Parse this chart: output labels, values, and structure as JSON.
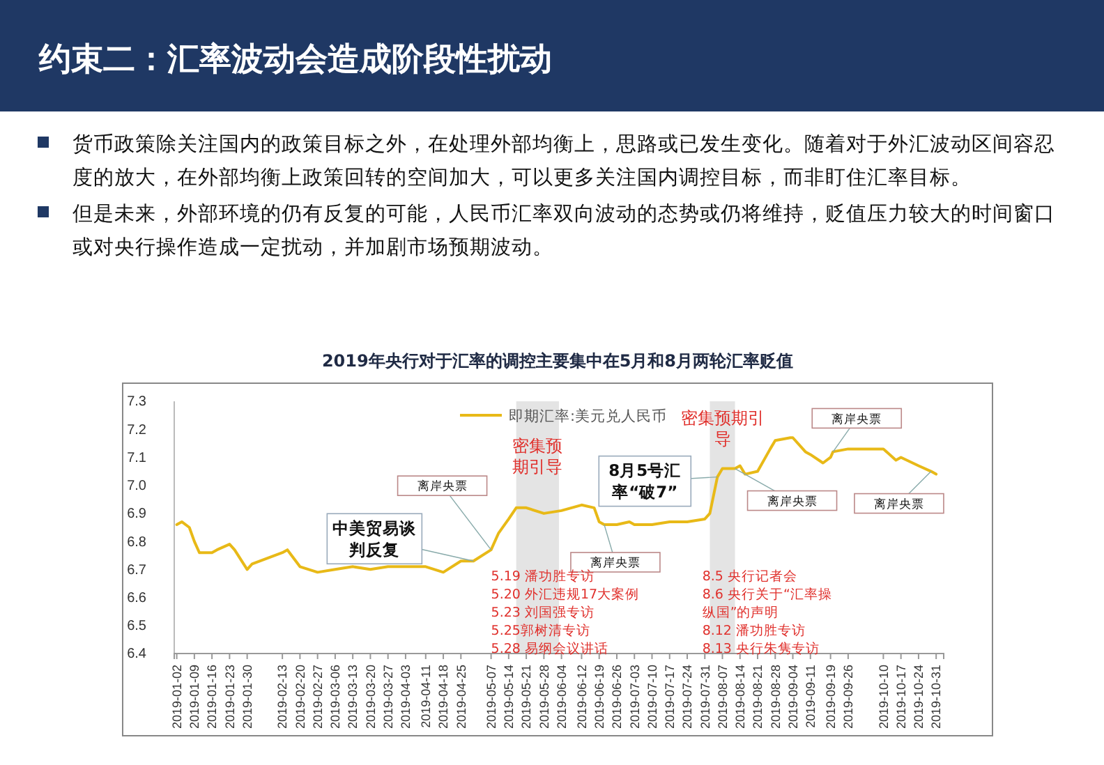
{
  "chart_data": {
    "type": "line",
    "title": "约束二：汇率波动会造成阶段性扰动",
    "subtitle": "2019年央行对于汇率的调控主要集中在5月和8月两轮汇率贬值",
    "annotations": [
      "货币政策除关注国内的政策目标之外，在处理外部均衡上，思路或已发生变化。随着对于外汇波动区间容忍度的放大，在外部均衡上政策回转的空间加大，可以更多关注国内调控目标，而非盯住汇率目标。",
      "但是未来，外部环境的仍有反复的可能，人民币汇率双向波动的态势或仍将维持，贬值压力较大的时间窗口或对央行操作造成一定扰动，并加剧市场预期波动。",
      {
        "text": "离岸央票",
        "x": "2019-05-07",
        "y": 6.77
      },
      {
        "text": "中美贸易谈判反复",
        "x": "2019-04-30",
        "y": 6.73
      },
      {
        "text": "离岸央票",
        "x": "2019-06-21",
        "y": 6.86
      },
      {
        "text": "8月5号汇率“破7”",
        "x": "2019-08-05",
        "y": 7.03
      },
      {
        "text": "离岸央票",
        "x": "2019-08-12",
        "y": 7.06
      },
      {
        "text": "离岸央票",
        "x": "2019-09-20",
        "y": 7.12
      },
      {
        "text": "离岸央票",
        "x": "2019-10-29",
        "y": 7.05
      },
      "5.19 潘功胜专访\n5.20 外汇违规17大案例\n5.23 刘国强专访\n5.25郭树清专访\n5.28 易纲会议讲话",
      "8.5 央行记者会\n8.6 央行关于“汇率操纵国”的声明\n8.12 潘功胜专访\n8.13 央行朱隽专访"
    ],
    "x": [
      "2019-01-02",
      "2019-01-04",
      "2019-01-07",
      "2019-01-09",
      "2019-01-11",
      "2019-01-16",
      "2019-01-18",
      "2019-01-23",
      "2019-01-25",
      "2019-01-30",
      "2019-02-01",
      "2019-02-13",
      "2019-02-15",
      "2019-02-20",
      "2019-02-27",
      "2019-03-06",
      "2019-03-13",
      "2019-03-20",
      "2019-03-27",
      "2019-04-03",
      "2019-04-11",
      "2019-04-18",
      "2019-04-25",
      "2019-04-30",
      "2019-05-07",
      "2019-05-10",
      "2019-05-14",
      "2019-05-17",
      "2019-05-21",
      "2019-05-28",
      "2019-06-04",
      "2019-06-12",
      "2019-06-17",
      "2019-06-19",
      "2019-06-21",
      "2019-06-26",
      "2019-07-01",
      "2019-07-03",
      "2019-07-10",
      "2019-07-17",
      "2019-07-24",
      "2019-07-31",
      "2019-08-02",
      "2019-08-05",
      "2019-08-07",
      "2019-08-12",
      "2019-08-14",
      "2019-08-16",
      "2019-08-21",
      "2019-08-26",
      "2019-08-28",
      "2019-09-03",
      "2019-09-04",
      "2019-09-09",
      "2019-09-11",
      "2019-09-16",
      "2019-09-19",
      "2019-09-20",
      "2019-09-26",
      "2019-10-10",
      "2019-10-15",
      "2019-10-17",
      "2019-10-24",
      "2019-10-29",
      "2019-10-31"
    ],
    "series": [
      {
        "name": "即期汇率:美元兑人民币",
        "color": "#e8b917",
        "values": [
          6.86,
          6.87,
          6.85,
          6.8,
          6.76,
          6.76,
          6.77,
          6.79,
          6.77,
          6.7,
          6.72,
          6.76,
          6.77,
          6.71,
          6.69,
          6.7,
          6.71,
          6.7,
          6.71,
          6.71,
          6.71,
          6.69,
          6.73,
          6.73,
          6.77,
          6.83,
          6.88,
          6.92,
          6.92,
          6.9,
          6.91,
          6.93,
          6.92,
          6.87,
          6.86,
          6.86,
          6.87,
          6.86,
          6.86,
          6.87,
          6.87,
          6.88,
          6.9,
          7.03,
          7.06,
          7.06,
          7.07,
          7.04,
          7.05,
          7.13,
          7.16,
          7.17,
          7.17,
          7.12,
          7.11,
          7.08,
          7.1,
          7.12,
          7.13,
          7.13,
          7.09,
          7.1,
          7.07,
          7.05,
          7.04
        ]
      }
    ],
    "xlim": [
      "2019-01-01",
      "2019-11-03"
    ],
    "xticks": [
      "2019-01-02",
      "2019-01-09",
      "2019-01-16",
      "2019-01-23",
      "2019-01-30",
      "2019-02-13",
      "2019-02-20",
      "2019-02-27",
      "2019-03-06",
      "2019-03-13",
      "2019-03-20",
      "2019-03-27",
      "2019-04-03",
      "2019-04-11",
      "2019-04-18",
      "2019-04-25",
      "2019-05-07",
      "2019-05-14",
      "2019-05-21",
      "2019-05-28",
      "2019-06-04",
      "2019-06-12",
      "2019-06-19",
      "2019-06-26",
      "2019-07-03",
      "2019-07-10",
      "2019-07-17",
      "2019-07-24",
      "2019-07-31",
      "2019-08-07",
      "2019-08-14",
      "2019-08-21",
      "2019-08-28",
      "2019-09-04",
      "2019-09-11",
      "2019-09-19",
      "2019-09-26",
      "2019-10-10",
      "2019-10-17",
      "2019-10-24",
      "2019-10-31"
    ],
    "ylim": [
      6.4,
      7.3
    ],
    "yticks": [
      6.4,
      6.5,
      6.6,
      6.7,
      6.8,
      6.9,
      {
        "value": 7,
        "label": "7.0"
      },
      7.1,
      7.2,
      7.3
    ],
    "bands": [
      {
        "axis": "x",
        "from": "2019-05-17",
        "to": "2019-06-03",
        "label": "密集预期引导",
        "color": "#e4e4e4"
      },
      {
        "axis": "x",
        "from": "2019-08-02",
        "to": "2019-08-12",
        "label": "密集预期引导",
        "color": "#e4e4e4"
      }
    ],
    "grid": false,
    "legend": "top",
    "marker": "none",
    "line_style": "solid"
  }
}
